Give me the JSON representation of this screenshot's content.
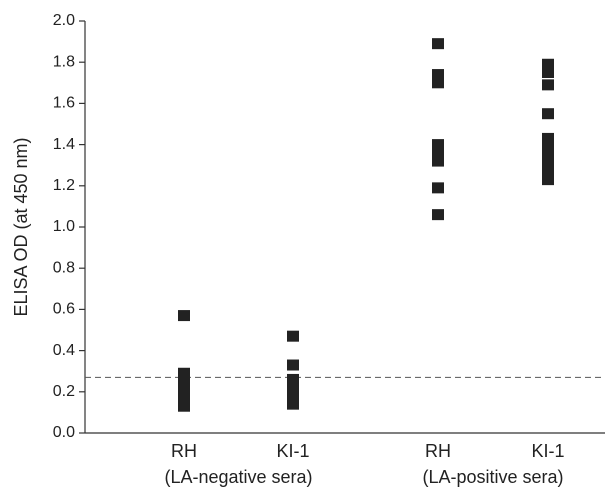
{
  "chart_data": {
    "type": "strip",
    "y_label": "ELISA OD (at 450 nm)",
    "categories": [
      "RH",
      "KI-1",
      "RH",
      "KI-1"
    ],
    "groups": [
      {
        "label": "(LA-negative sera)",
        "members": [
          0,
          1
        ]
      },
      {
        "label": "(LA-positive sera)",
        "members": [
          2,
          3
        ]
      }
    ],
    "values": [
      [
        0.57,
        0.29,
        0.24,
        0.2,
        0.17,
        0.13
      ],
      [
        0.47,
        0.33,
        0.26,
        0.23,
        0.2,
        0.17,
        0.14
      ],
      [
        1.89,
        1.74,
        1.7,
        1.4,
        1.36,
        1.32,
        1.19,
        1.06
      ],
      [
        1.79,
        1.75,
        1.69,
        1.55,
        1.43,
        1.39,
        1.35,
        1.32,
        1.27,
        1.23
      ]
    ],
    "color": "#222222",
    "reference_line": 0.27,
    "ylim": [
      0,
      2
    ],
    "yticks": [
      {
        "value": 0,
        "label": "0.0"
      },
      0.2,
      0.4,
      0.6,
      0.8,
      {
        "value": 1,
        "label": "1.0"
      },
      1.2,
      1.4,
      1.6,
      1.8,
      {
        "value": 2,
        "label": "2.0"
      }
    ]
  }
}
